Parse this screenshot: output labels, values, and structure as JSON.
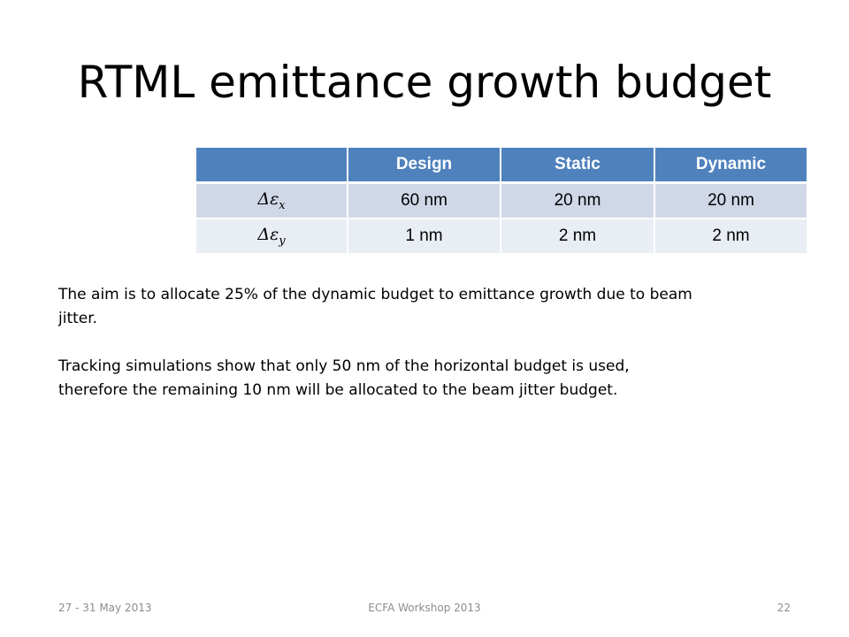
{
  "slide": {
    "title": "RTML emittance growth budget"
  },
  "table": {
    "headers": [
      "",
      "Design",
      "Static",
      "Dynamic"
    ],
    "rows": [
      {
        "label_symbol": "Δε",
        "label_sub": "x",
        "values": [
          "60 nm",
          "20 nm",
          "20 nm"
        ]
      },
      {
        "label_symbol": "Δε",
        "label_sub": "y",
        "values": [
          "1 nm",
          "2 nm",
          "2 nm"
        ]
      }
    ]
  },
  "body": {
    "paragraph_1": "The aim is to allocate 25% of the dynamic budget to emittance growth due to beam jitter.",
    "paragraph_2": "Tracking simulations show that only 50 nm of the horizontal budget is used, therefore the remaining 10 nm will be allocated to the beam jitter budget."
  },
  "footer": {
    "date": "27 - 31 May 2013",
    "event": "ECFA Workshop 2013",
    "page": "22"
  },
  "colors": {
    "header_bg": "#4f81bd",
    "row_odd_bg": "#d0d8e8",
    "row_even_bg": "#e9edf4",
    "footer_text": "#8c8c8c"
  }
}
